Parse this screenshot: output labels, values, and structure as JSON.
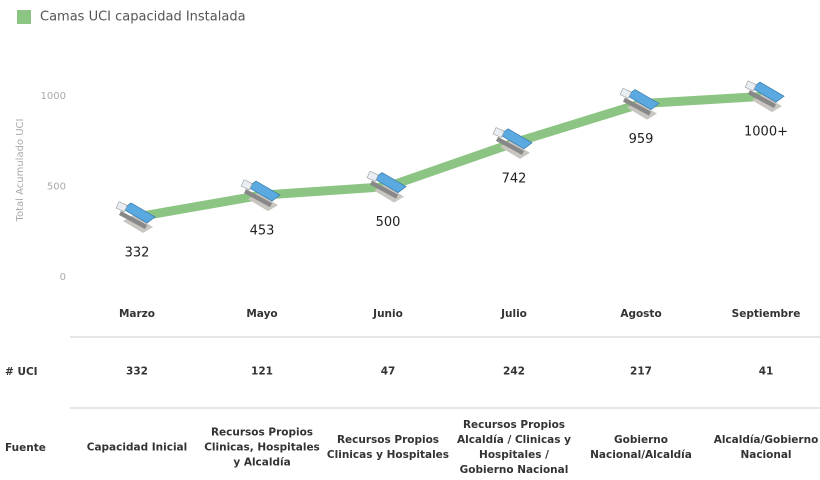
{
  "chart_data": {
    "type": "line",
    "categories": [
      "Marzo",
      "Mayo",
      "Junio",
      "Julio",
      "Agosto",
      "Septiembre"
    ],
    "series": [
      {
        "name": "Camas UCI capacidad Instalada",
        "color": "#8cc483",
        "values": [
          332,
          453,
          500,
          742,
          959,
          1000
        ],
        "value_labels": [
          "332",
          "453",
          "500",
          "742",
          "959",
          "1000+"
        ]
      }
    ],
    "y_label": "Total Acumulado UCI",
    "ylim": [
      0,
      1200
    ],
    "yticks": [
      0,
      500,
      1000
    ],
    "grid": false,
    "legend": "top-left"
  },
  "table": {
    "rows": [
      {
        "header": "# UCI",
        "cells": [
          332,
          121,
          47,
          242,
          217,
          41
        ]
      },
      {
        "header": "Fuente",
        "cells": [
          "Capacidad Inicial",
          "Recursos Propios Clinicas, Hospitales y Alcaldía",
          "Recursos Propios Clinicas y Hospitales",
          "Recursos Propios Alcaldía / Clinicas y Hospitales / Gobierno Nacional",
          "Gobierno Nacional/Alcaldía",
          "Alcaldía/Gobierno Nacional"
        ]
      }
    ]
  }
}
